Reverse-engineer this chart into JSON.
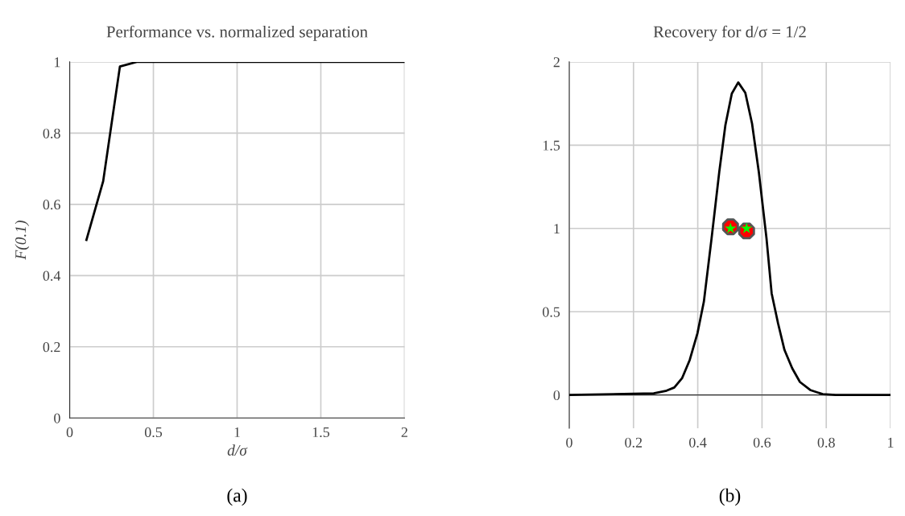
{
  "chart_data": [
    {
      "type": "line",
      "title": "Performance vs. normalized separation",
      "xlabel": "d/σ",
      "ylabel": "F(0.1)",
      "annotations": [
        "(a)"
      ],
      "x": [
        0.1,
        0.2,
        0.3,
        0.4,
        2
      ],
      "series": [
        {
          "color": "#000000",
          "values": [
            0.5,
            0.665,
            0.987,
            1,
            1
          ]
        }
      ],
      "xlim": [
        0,
        2
      ],
      "ylim": [
        0,
        1
      ],
      "xticks": [
        0,
        0.5,
        1,
        1.5,
        2
      ],
      "yticks": [
        0,
        0.2,
        0.4,
        0.6,
        0.8,
        1
      ],
      "grid": true,
      "marker": "none",
      "line_style": "solid"
    },
    {
      "type": "line",
      "title": "Recovery for d/σ = 1/2",
      "annotations": [
        "(b)"
      ],
      "series": [
        {
          "type": "line",
          "color": "#000000",
          "x": [
            0,
            0.263,
            0.303,
            0.327,
            0.351,
            0.375,
            0.399,
            0.419,
            0.443,
            0.467,
            0.486,
            0.506,
            0.526,
            0.548,
            0.569,
            0.59,
            0.614,
            0.63,
            0.65,
            0.67,
            0.694,
            0.718,
            0.75,
            0.789,
            0.829,
            1
          ],
          "values": [
            0,
            0.01,
            0.026,
            0.045,
            0.1,
            0.21,
            0.37,
            0.56,
            0.94,
            1.34,
            1.62,
            1.81,
            1.877,
            1.815,
            1.63,
            1.34,
            0.94,
            0.61,
            0.43,
            0.27,
            0.16,
            0.078,
            0.03,
            0.005,
            0,
            0
          ]
        },
        {
          "type": "scatter",
          "marker": "circle",
          "color": "#ff0000",
          "x": [
            0.502,
            0.552
          ],
          "values": [
            1.01,
            0.985
          ]
        },
        {
          "type": "scatter",
          "marker": "star",
          "color": "#00ff00",
          "x": [
            0.502,
            0.552
          ],
          "values": [
            1.0,
            1.0
          ]
        }
      ],
      "xlim": [
        0,
        1
      ],
      "ylim": [
        -0.2,
        2
      ],
      "xticks": [
        0,
        0.2,
        0.4,
        0.6,
        0.8,
        1
      ],
      "yticks": [
        0,
        0.5,
        1,
        1.5,
        2
      ],
      "grid": true,
      "ref_lines": [
        {
          "axis": "y",
          "value": 0,
          "color": "#333333"
        }
      ]
    }
  ]
}
